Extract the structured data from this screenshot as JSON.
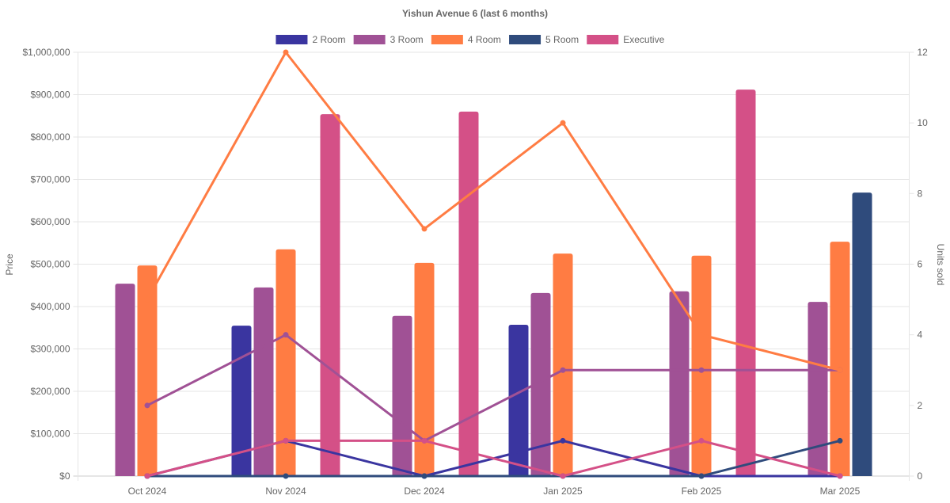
{
  "chart_data": {
    "type": "bar",
    "title": "Yishun Avenue 6 (last 6 months)",
    "categories": [
      "Oct 2024",
      "Nov 2024",
      "Dec 2024",
      "Jan 2025",
      "Feb 2025",
      "Mar 2025"
    ],
    "ylabel": "Price",
    "y2label": "Units sold",
    "ylim": [
      0,
      1000000
    ],
    "y2lim": [
      0,
      12
    ],
    "yticks": [
      "$0",
      "$100,000",
      "$200,000",
      "$300,000",
      "$400,000",
      "$500,000",
      "$600,000",
      "$700,000",
      "$800,000",
      "$900,000",
      "$1,000,000"
    ],
    "y2ticks": [
      "0",
      "2",
      "4",
      "6",
      "8",
      "10",
      "12"
    ],
    "legend_position": "top",
    "grid": true,
    "series": [
      {
        "name": "2 Room",
        "color": "#3a35a0",
        "price": [
          null,
          355000,
          null,
          357000,
          null,
          null
        ],
        "units": [
          0,
          1,
          0,
          1,
          0,
          0
        ]
      },
      {
        "name": "3 Room",
        "color": "#a05195",
        "price": [
          454000,
          445000,
          378000,
          432000,
          436000,
          411000
        ],
        "units": [
          2,
          4,
          1,
          3,
          3,
          3
        ]
      },
      {
        "name": "4 Room",
        "color": "#ff7c43",
        "price": [
          497000,
          535000,
          503000,
          525000,
          520000,
          553000
        ],
        "units": [
          5,
          12,
          7,
          10,
          4,
          3
        ]
      },
      {
        "name": "5 Room",
        "color": "#2f4b7c",
        "price": [
          null,
          null,
          null,
          null,
          null,
          669000
        ],
        "units": [
          0,
          0,
          0,
          0,
          0,
          1
        ]
      },
      {
        "name": "Executive",
        "color": "#d45087",
        "price": [
          null,
          854000,
          860000,
          null,
          912000,
          null
        ],
        "units": [
          0,
          1,
          1,
          0,
          1,
          0
        ]
      }
    ]
  }
}
